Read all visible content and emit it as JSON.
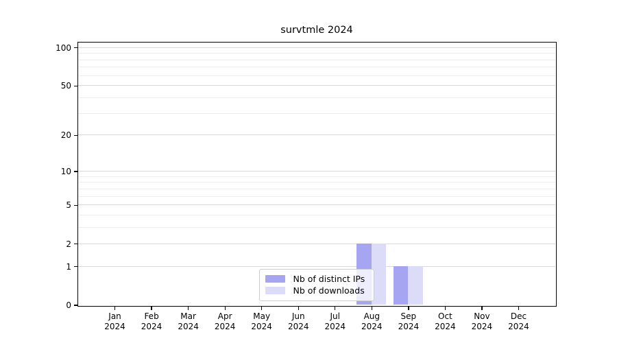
{
  "chart_data": {
    "type": "bar",
    "title": "survtmle 2024",
    "year": "2024",
    "months": [
      "Jan",
      "Feb",
      "Mar",
      "Apr",
      "May",
      "Jun",
      "Jul",
      "Aug",
      "Sep",
      "Oct",
      "Nov",
      "Dec"
    ],
    "categories": [
      "Jan 2024",
      "Feb 2024",
      "Mar 2024",
      "Apr 2024",
      "May 2024",
      "Jun 2024",
      "Jul 2024",
      "Aug 2024",
      "Sep 2024",
      "Oct 2024",
      "Nov 2024",
      "Dec 2024"
    ],
    "series": [
      {
        "name": "Nb of distinct IPs",
        "color": "#a5a5f2",
        "values": [
          0,
          0,
          0,
          0,
          0,
          0,
          0,
          2,
          1,
          0,
          0,
          0
        ]
      },
      {
        "name": "Nb of downloads",
        "color": "#dcdcf9",
        "values": [
          0,
          0,
          0,
          0,
          0,
          0,
          0,
          2,
          1,
          0,
          0,
          0
        ]
      }
    ],
    "xlabel": "",
    "ylabel": "",
    "y_axis": {
      "scale": "log1p",
      "ticks": [
        0,
        1,
        2,
        5,
        10,
        20,
        50,
        100
      ],
      "minor_gridlines": [
        3,
        4,
        6,
        7,
        8,
        9,
        30,
        40,
        60,
        70,
        80,
        90
      ],
      "ylim": [
        0,
        110
      ]
    },
    "grid": "horizontal",
    "legend_position": "bottom-center"
  },
  "colors": {
    "major_grid": "#d9d9d9",
    "minor_grid": "#ededed",
    "axis": "#000000",
    "background": "#ffffff",
    "text": "#000000"
  }
}
